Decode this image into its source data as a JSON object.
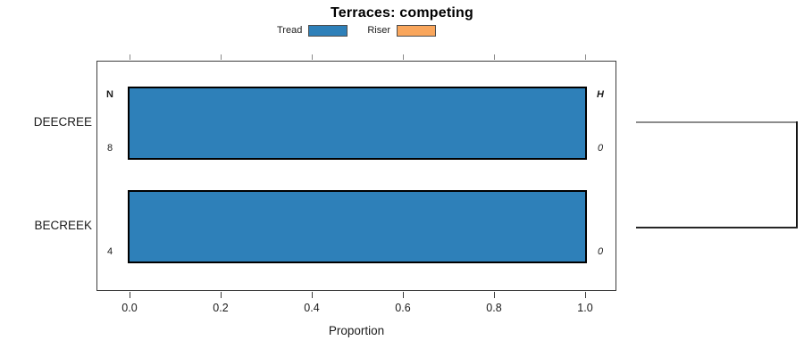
{
  "title": "Terraces: competing",
  "legend": {
    "items": [
      {
        "label": "Tread",
        "color": "#2e80b9"
      },
      {
        "label": "Riser",
        "color": "#f9a65c"
      }
    ]
  },
  "axis": {
    "xlabel": "Proportion",
    "ticks": [
      "0.0",
      "0.2",
      "0.4",
      "0.6",
      "0.8",
      "1.0"
    ]
  },
  "columns": {
    "n_header": "N",
    "h_header": "H"
  },
  "rows": [
    {
      "label": "DEECREE",
      "n": "8",
      "h": "0"
    },
    {
      "label": "BECREEK",
      "n": "4",
      "h": "0"
    }
  ],
  "chart_data": {
    "type": "bar",
    "orientation": "horizontal",
    "title": "Terraces: competing",
    "xlabel": "Proportion",
    "ylabel": "",
    "xlim": [
      0.0,
      1.0
    ],
    "xticks": [
      0.0,
      0.2,
      0.4,
      0.6,
      0.8,
      1.0
    ],
    "grid": false,
    "legend_position": "top-center",
    "categories": [
      "DEECREE",
      "BECREEK"
    ],
    "series": [
      {
        "name": "Tread",
        "color": "#2e80b9",
        "values": [
          1.0,
          1.0
        ]
      },
      {
        "name": "Riser",
        "color": "#f9a65c",
        "values": [
          0.0,
          0.0
        ]
      }
    ],
    "annotations": {
      "n_header": "N",
      "h_header": "H",
      "n_values": [
        8,
        4
      ],
      "h_values": [
        0,
        0
      ]
    }
  }
}
